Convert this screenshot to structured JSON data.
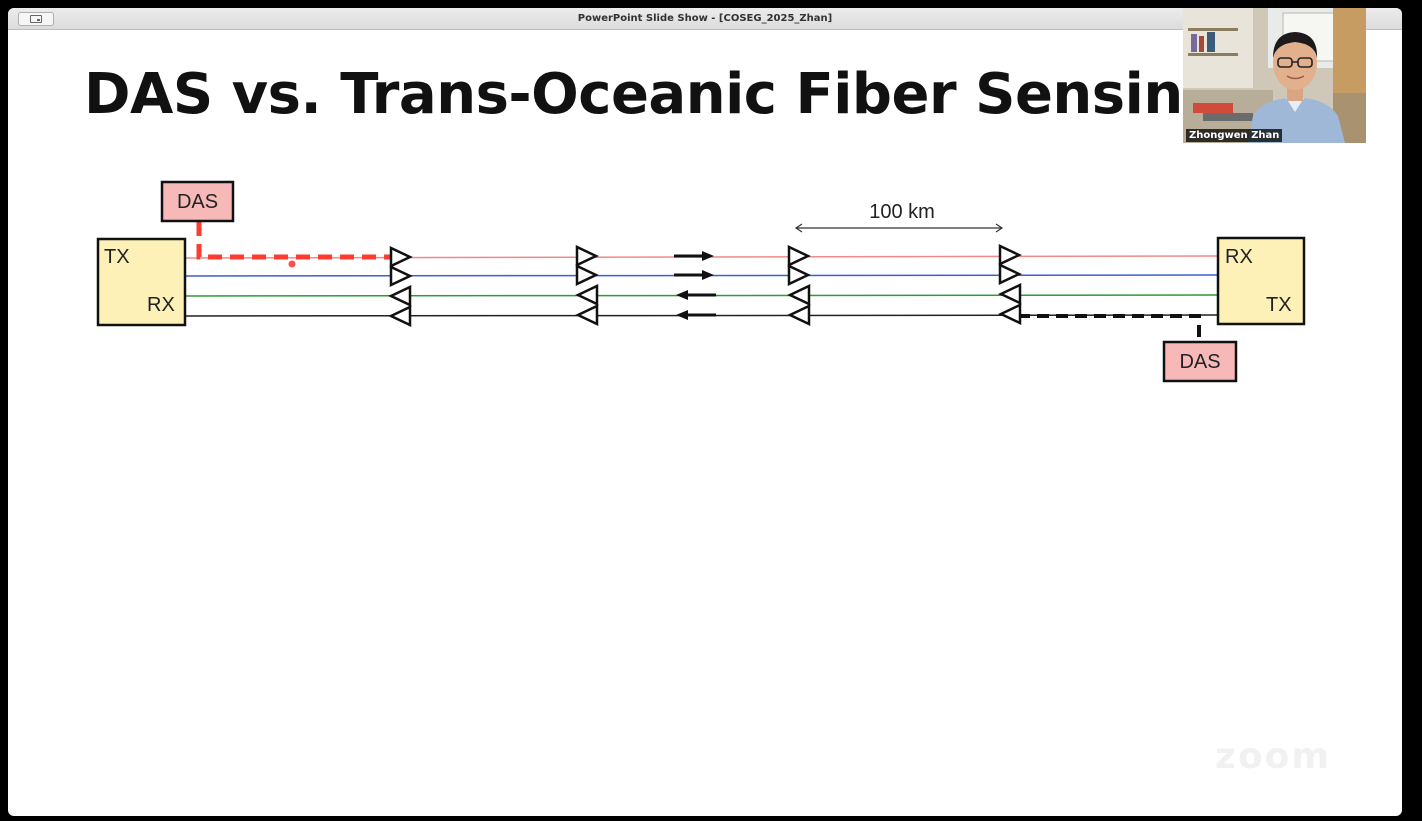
{
  "window": {
    "title": "PowerPoint Slide Show - [COSEG_2025_Zhan]"
  },
  "slide": {
    "title": "DAS vs. Trans-Oceanic Fiber Sensing",
    "left_terminal": {
      "top_label": "TX",
      "bottom_label": "RX"
    },
    "right_terminal": {
      "top_label": "RX",
      "bottom_label": "TX"
    },
    "das_left_label": "DAS",
    "das_right_label": "DAS",
    "span_label": "100 km",
    "colors": {
      "fiber_1": "#f08a8a",
      "fiber_2": "#3b5fd6",
      "fiber_3": "#2e9a3a",
      "fiber_4": "#222222",
      "das_box_fill": "#f7b8b8",
      "terminal_fill": "#fdf1b8",
      "das_left_path": "#ff3b30",
      "das_right_path": "#111111",
      "laser_pointer": "#ff4d4d"
    }
  },
  "video": {
    "participant_name": "Zhongwen Zhan"
  },
  "watermark": {
    "text": "zoom"
  }
}
